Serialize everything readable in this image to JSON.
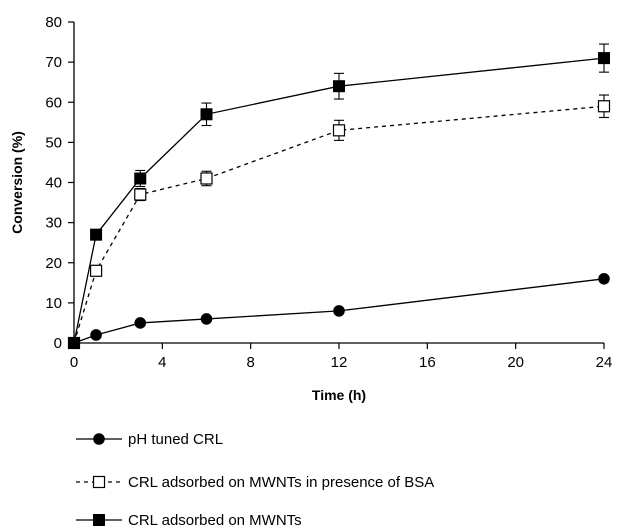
{
  "chart_data": {
    "type": "line",
    "xlabel": "Time (h)",
    "ylabel": "Conversion (%)",
    "xlim": [
      0,
      24
    ],
    "ylim": [
      0,
      80
    ],
    "x_ticks": [
      0,
      4,
      8,
      12,
      16,
      20,
      24
    ],
    "y_ticks": [
      0,
      10,
      20,
      30,
      40,
      50,
      60,
      70,
      80
    ],
    "grid": false,
    "legend_position": "bottom",
    "series": [
      {
        "name": "pH tuned CRL",
        "marker": "filled-circle",
        "line": "solid",
        "x": [
          0,
          1,
          3,
          6,
          12,
          24
        ],
        "y": [
          0,
          2,
          5,
          6,
          8,
          16
        ],
        "error": [
          0,
          0,
          0,
          0,
          0,
          0
        ]
      },
      {
        "name": "CRL adsorbed on MWNTs in presence of BSA",
        "marker": "open-square",
        "line": "dashed",
        "x": [
          0,
          1,
          3,
          6,
          12,
          24
        ],
        "y": [
          0,
          18,
          37,
          41,
          53,
          59
        ],
        "error": [
          0,
          0,
          1.5,
          1.8,
          2.5,
          2.8
        ]
      },
      {
        "name": "CRL adsorbed on MWNTs",
        "marker": "filled-square",
        "line": "solid",
        "x": [
          0,
          1,
          3,
          6,
          12,
          24
        ],
        "y": [
          0,
          27,
          41,
          57,
          64,
          71
        ],
        "error": [
          0,
          0,
          2,
          2.8,
          3.2,
          3.5
        ]
      }
    ]
  }
}
